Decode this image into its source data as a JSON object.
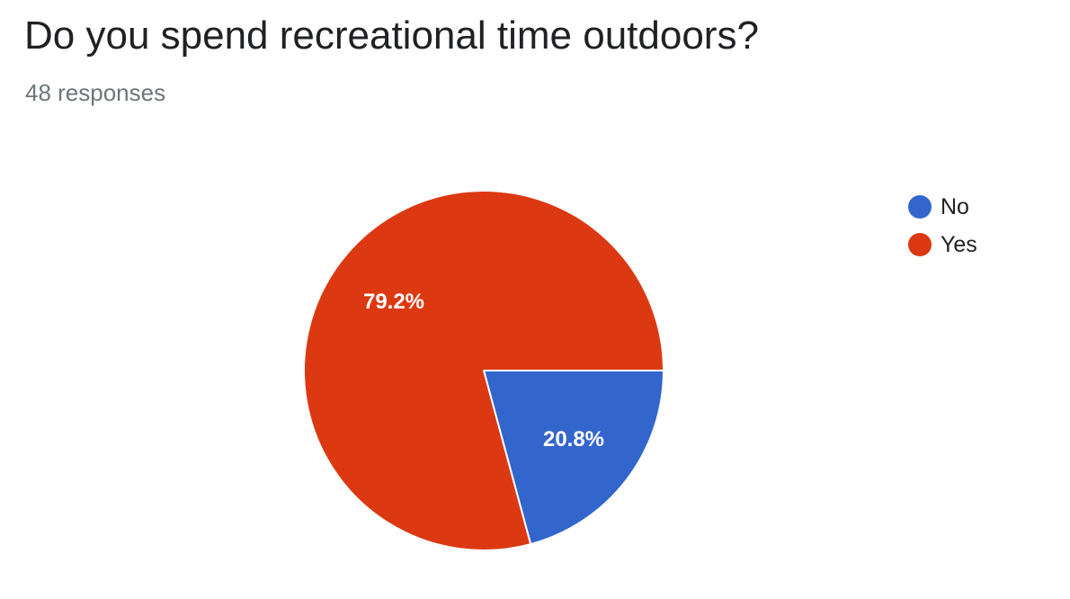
{
  "question": {
    "title": "Do you spend recreational time outdoors?",
    "responses": "48 responses"
  },
  "chart_data": {
    "type": "pie",
    "title": "Do you spend recreational time outdoors?",
    "subtitle": "48 responses",
    "legend_position": "right",
    "slices": [
      {
        "label": "No",
        "value": 20.8,
        "display": "20.8%",
        "color": "#3366cc"
      },
      {
        "label": "Yes",
        "value": 79.2,
        "display": "79.2%",
        "color": "#dc3912"
      }
    ]
  }
}
